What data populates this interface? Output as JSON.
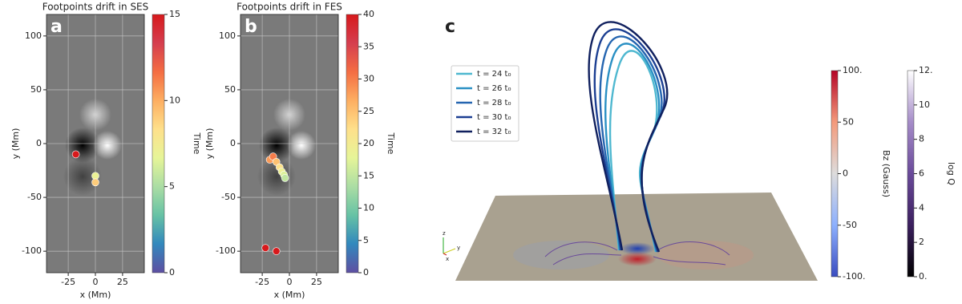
{
  "chart_data": [
    {
      "type": "scatter",
      "title": "Footpoints drift in SES",
      "panel": "a",
      "x_label": "x (Mm)",
      "y_label": "y (Mm)",
      "xlim": [
        -45,
        45
      ],
      "xticks": [
        -25,
        0,
        25
      ],
      "ylim": [
        -120,
        120
      ],
      "yticks": [
        -100,
        -50,
        0,
        50,
        100
      ],
      "grid": true,
      "points": {
        "x": [
          -18,
          0,
          0
        ],
        "y": [
          -10,
          -30,
          -36
        ],
        "t": [
          15,
          7,
          9
        ]
      },
      "colorbar": {
        "label": "Time",
        "lim": [
          0,
          15
        ],
        "ticks": [
          0,
          5,
          10,
          15
        ],
        "colors": [
          "#5e4fa2",
          "#3288bd",
          "#66c2a5",
          "#abdda4",
          "#e6f598",
          "#fee08b",
          "#fdae61",
          "#f46d43",
          "#d53e4f",
          "#d7191c"
        ]
      }
    },
    {
      "type": "scatter",
      "title": "Footpoints drift in FES",
      "panel": "b",
      "x_label": "x (Mm)",
      "y_label": "y (Mm)",
      "xlim": [
        -45,
        45
      ],
      "xticks": [
        -25,
        0,
        25
      ],
      "ylim": [
        -120,
        120
      ],
      "yticks": [
        -100,
        -50,
        0,
        50,
        100
      ],
      "grid": true,
      "points": {
        "x": [
          -22,
          -12,
          -18,
          -15,
          -12,
          -9,
          -7,
          -5,
          -4
        ],
        "y": [
          -97,
          -100,
          -15,
          -12,
          -17,
          -22,
          -26,
          -29,
          -32
        ],
        "t": [
          40,
          40,
          28,
          30,
          25,
          22,
          19,
          17,
          15
        ]
      },
      "colorbar": {
        "label": "Time",
        "lim": [
          0,
          40
        ],
        "ticks": [
          0,
          5,
          10,
          15,
          20,
          25,
          30,
          35,
          40
        ],
        "colors": [
          "#5e4fa2",
          "#3288bd",
          "#66c2a5",
          "#abdda4",
          "#e6f598",
          "#fee08b",
          "#fdae61",
          "#f46d43",
          "#d53e4f",
          "#d7191c"
        ]
      }
    },
    {
      "type": "render3d",
      "panel": "c",
      "series": [
        {
          "name": "t = 24 t₀",
          "color": "#4fb8d0"
        },
        {
          "name": "t = 26 t₀",
          "color": "#2a90c4"
        },
        {
          "name": "t = 28 t₀",
          "color": "#2565b0"
        },
        {
          "name": "t = 30 t₀",
          "color": "#1c3f92"
        },
        {
          "name": "t = 32 t₀",
          "color": "#10205e"
        }
      ],
      "axes_triad": [
        "z",
        "y",
        "x"
      ],
      "colorbars": [
        {
          "label": "Bz (Gauss)",
          "lim": [
            -100,
            100
          ],
          "ticks": [
            {
              "value": -100,
              "label": "-100."
            },
            -50,
            0,
            50,
            {
              "value": 100,
              "label": "100."
            }
          ],
          "colors": [
            "#3a4cc0",
            "#8db0fe",
            "#dddcdc",
            "#f49a7b",
            "#b40426"
          ]
        },
        {
          "label": "log Q",
          "lim": [
            0,
            12
          ],
          "ticks": [
            {
              "value": 0,
              "label": "0."
            },
            2,
            4,
            6,
            8,
            10,
            {
              "value": 12,
              "label": "12."
            }
          ],
          "colors": [
            "#000000",
            "#3b1f5e",
            "#6a4a9a",
            "#a58cc8",
            "#ffffff"
          ]
        }
      ]
    }
  ]
}
